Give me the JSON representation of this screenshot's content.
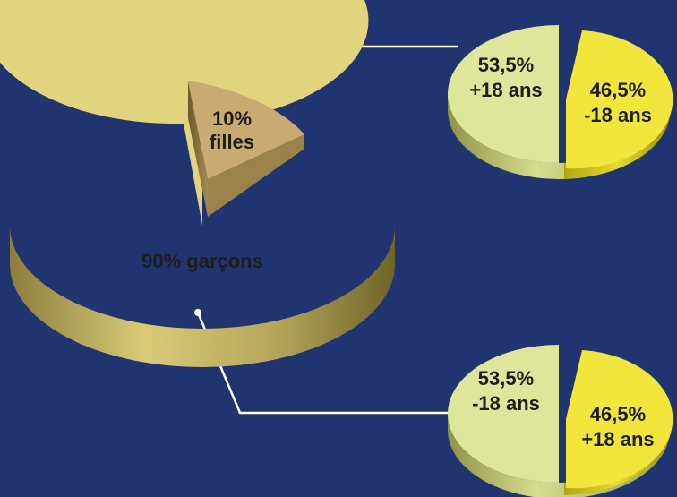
{
  "chart_data": [
    {
      "type": "pie",
      "slices": [
        {
          "label": "garçons",
          "value": 90,
          "text": "90% garçons",
          "color": "#e2d37e"
        },
        {
          "label": "filles",
          "value": 10,
          "text_pct": "10%",
          "text_name": "filles",
          "color": "#c9aa71"
        }
      ]
    },
    {
      "type": "pie",
      "parent_slice": "filles",
      "slices": [
        {
          "value": 53.5,
          "text_pct": "53,5%",
          "text_age": "+18 ans",
          "color": "#dde69a"
        },
        {
          "value": 46.5,
          "text_pct": "46,5%",
          "text_age": "-18 ans",
          "color": "#f2e63c"
        }
      ]
    },
    {
      "type": "pie",
      "parent_slice": "garçons",
      "slices": [
        {
          "value": 53.5,
          "text_pct": "53,5%",
          "text_age": "-18 ans",
          "color": "#dde69a"
        },
        {
          "value": 46.5,
          "text_pct": "46,5%",
          "text_age": "+18 ans",
          "color": "#f2e63c"
        }
      ]
    }
  ],
  "colors": {
    "background": "#20346f",
    "connector": "#ffffff",
    "text": "#1d1d1b"
  }
}
